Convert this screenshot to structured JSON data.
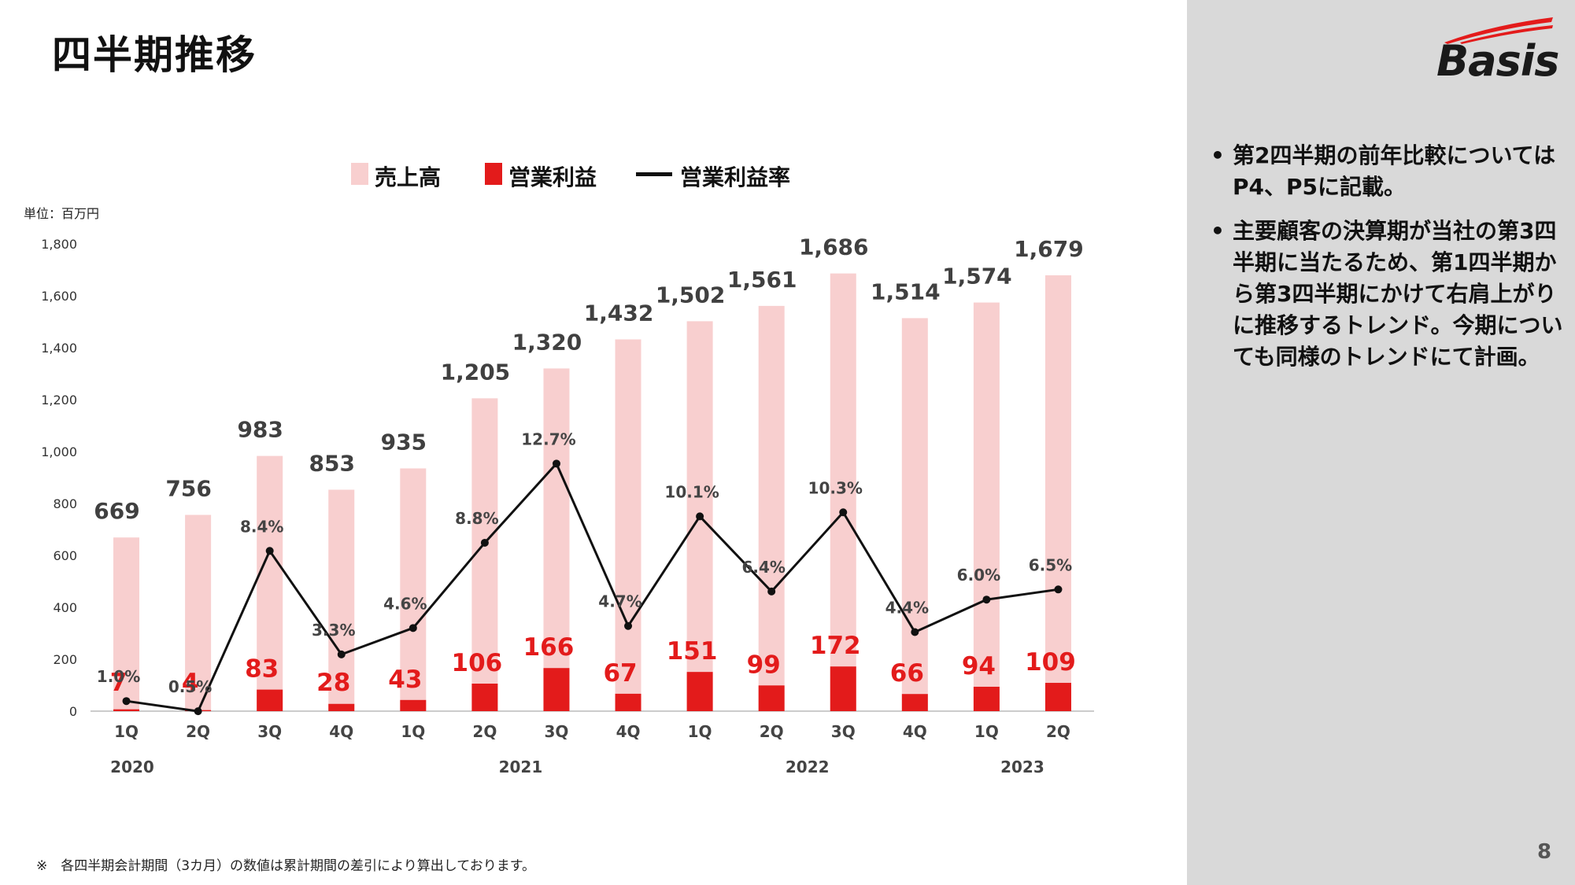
{
  "title": "四半期推移",
  "unit_label": "単位：百万円",
  "legend": {
    "sales": "売上高",
    "op_profit": "営業利益",
    "op_margin": "営業利益率"
  },
  "colors": {
    "sales": "#f8cfcf",
    "op_profit": "#e31b1b",
    "margin_line": "#111111",
    "sidebar": "#d9d9d9",
    "logo_red": "#e31b1b"
  },
  "logo": {
    "text": "Basis"
  },
  "notes": [
    "第2四半期の前年比較についてはP4、P5に記載。",
    "主要顧客の決算期が当社の第3四半期に当たるため、第1四半期から第3四半期にかけて右肩上がりに推移するトレンド。今期についても同様のトレンドにて計画。"
  ],
  "footnote": "※　各四半期会計期間（3カ月）の数値は累計期間の差引により算出しております。",
  "page_number": "8",
  "chart_data": {
    "type": "bar",
    "categories": [
      "1Q",
      "2Q",
      "3Q",
      "4Q",
      "1Q",
      "2Q",
      "3Q",
      "4Q",
      "1Q",
      "2Q",
      "3Q",
      "4Q",
      "1Q",
      "2Q"
    ],
    "year_groups": [
      {
        "label": "2020",
        "span": [
          0,
          3
        ]
      },
      {
        "label": "2021",
        "span": [
          4,
          7
        ]
      },
      {
        "label": "2022",
        "span": [
          8,
          11
        ]
      },
      {
        "label": "2023",
        "span": [
          12,
          13
        ]
      }
    ],
    "ylim": [
      0,
      1800
    ],
    "yticks": [
      0,
      200,
      400,
      600,
      800,
      1000,
      1200,
      1400,
      1600,
      1800
    ],
    "ytick_labels": [
      "0",
      "200",
      "400",
      "600",
      "800",
      "1,000",
      "1,200",
      "1,400",
      "1,600",
      "1,800"
    ],
    "grid": false,
    "legend_position": "top",
    "series": [
      {
        "name": "売上高",
        "kind": "bar",
        "values": [
          669,
          756,
          983,
          853,
          935,
          1205,
          1320,
          1432,
          1502,
          1561,
          1686,
          1514,
          1574,
          1679
        ],
        "labels": [
          "669",
          "756",
          "983",
          "853",
          "935",
          "1,205",
          "1,320",
          "1,432",
          "1,502",
          "1,561",
          "1,686",
          "1,514",
          "1,574",
          "1,679"
        ]
      },
      {
        "name": "営業利益",
        "kind": "bar",
        "values": [
          7,
          4,
          83,
          28,
          43,
          106,
          166,
          67,
          151,
          99,
          172,
          66,
          94,
          109
        ],
        "labels": [
          "7",
          "4",
          "83",
          "28",
          "43",
          "106",
          "166",
          "67",
          "151",
          "99",
          "172",
          "66",
          "94",
          "109"
        ]
      },
      {
        "name": "営業利益率",
        "kind": "line",
        "unit": "%",
        "values": [
          1.0,
          0.5,
          8.4,
          3.3,
          4.6,
          8.8,
          12.7,
          4.7,
          10.1,
          6.4,
          10.3,
          4.4,
          6.0,
          6.5
        ],
        "labels": [
          "1.0%",
          "0.5%",
          "8.4%",
          "3.3%",
          "4.6%",
          "8.8%",
          "12.7%",
          "4.7%",
          "10.1%",
          "6.4%",
          "10.3%",
          "4.4%",
          "6.0%",
          "6.5%"
        ]
      }
    ]
  }
}
